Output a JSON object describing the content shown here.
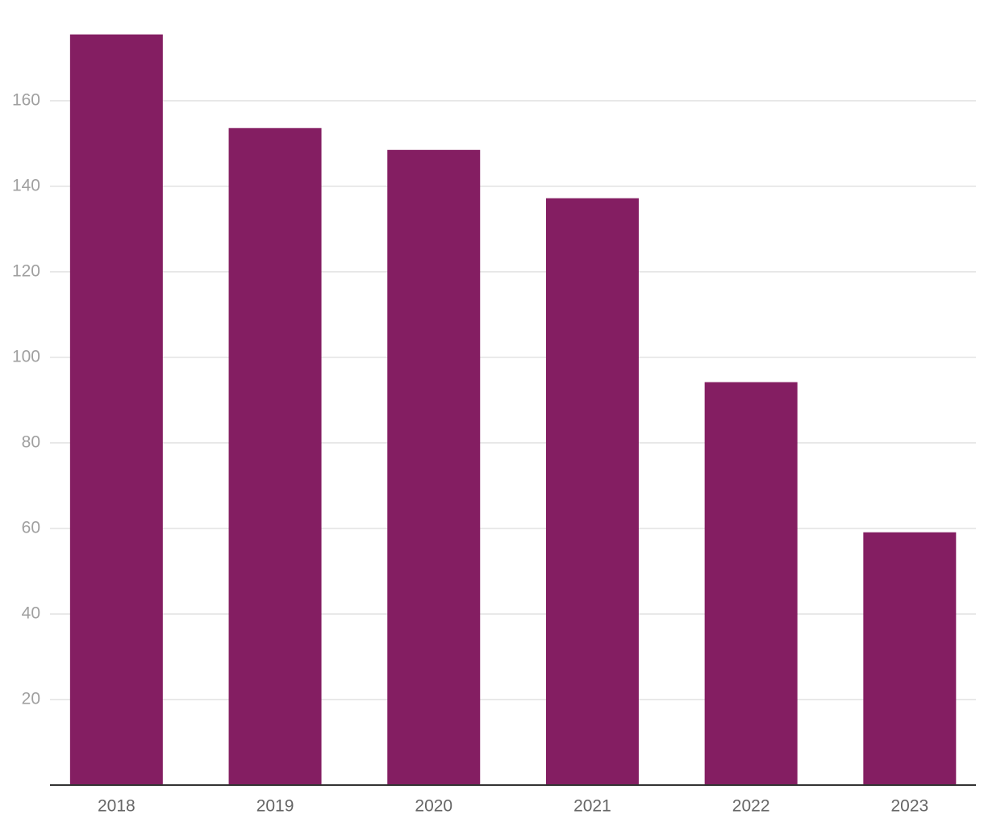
{
  "chart_data": {
    "type": "bar",
    "categories": [
      "2018",
      "2019",
      "2020",
      "2021",
      "2022",
      "2023"
    ],
    "values": [
      175.5,
      153.6,
      148.5,
      137.2,
      94.2,
      59.1
    ],
    "color": "#841e62",
    "ylim": [
      0,
      176
    ],
    "yticks": [
      20,
      40,
      60,
      80,
      100,
      120,
      140,
      160
    ],
    "grid": true
  }
}
